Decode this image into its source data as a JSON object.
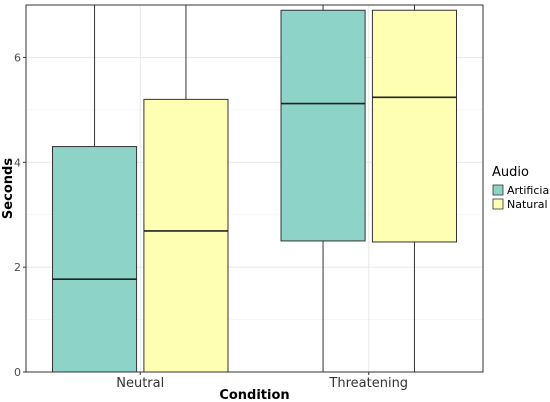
{
  "chart_data": {
    "type": "boxplot",
    "xlabel": "Condition",
    "ylabel": "Seconds",
    "categories": [
      "Neutral",
      "Threatening"
    ],
    "ylim": [
      0,
      7
    ],
    "yticks": [
      0,
      2,
      4,
      6
    ],
    "grid": true,
    "legend": {
      "title": "Audio",
      "position": "right",
      "entries": [
        "Artificial",
        "Natural"
      ]
    },
    "series": [
      {
        "name": "Artificial",
        "color": "#8dd3c7",
        "boxes": [
          {
            "category": "Neutral",
            "whisker_low": 0,
            "q1": 0,
            "median": 1.77,
            "q3": 4.3,
            "whisker_high": 7.0
          },
          {
            "category": "Threatening",
            "whisker_low": 0,
            "q1": 2.5,
            "median": 5.12,
            "q3": 6.9,
            "whisker_high": 7.0
          }
        ]
      },
      {
        "name": "Natural",
        "color": "#ffffb3",
        "boxes": [
          {
            "category": "Neutral",
            "whisker_low": 0,
            "q1": 0,
            "median": 2.69,
            "q3": 5.2,
            "whisker_high": 7.0
          },
          {
            "category": "Threatening",
            "whisker_low": 0,
            "q1": 2.48,
            "median": 5.24,
            "q3": 6.9,
            "whisker_high": 7.0
          }
        ]
      }
    ]
  }
}
